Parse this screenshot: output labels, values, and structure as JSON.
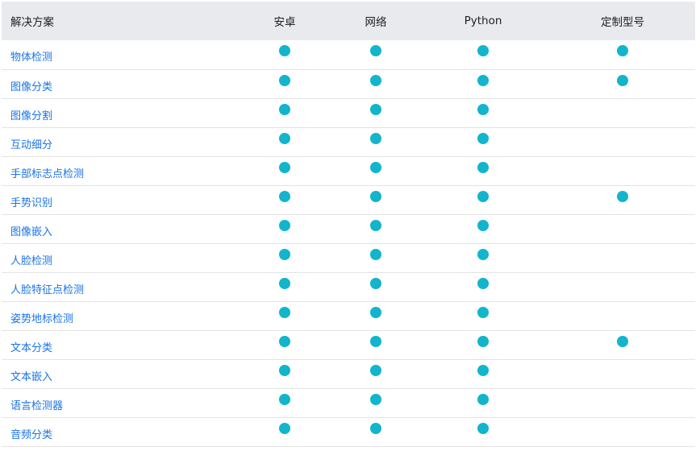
{
  "table": {
    "headers": [
      "解决方案",
      "安卓",
      "网络",
      "Python",
      "定制型号"
    ],
    "rows": [
      {
        "name": "物体检测",
        "support": [
          true,
          true,
          true,
          true
        ]
      },
      {
        "name": "图像分类",
        "support": [
          true,
          true,
          true,
          true
        ]
      },
      {
        "name": "图像分割",
        "support": [
          true,
          true,
          true,
          false
        ]
      },
      {
        "name": "互动细分",
        "support": [
          true,
          true,
          true,
          false
        ]
      },
      {
        "name": "手部标志点检测",
        "support": [
          true,
          true,
          true,
          false
        ]
      },
      {
        "name": "手势识别",
        "support": [
          true,
          true,
          true,
          true
        ]
      },
      {
        "name": "图像嵌入",
        "support": [
          true,
          true,
          true,
          false
        ]
      },
      {
        "name": "人脸检测",
        "support": [
          true,
          true,
          true,
          false
        ]
      },
      {
        "name": "人脸特征点检测",
        "support": [
          true,
          true,
          true,
          false
        ]
      },
      {
        "name": "姿势地标检测",
        "support": [
          true,
          true,
          true,
          false
        ]
      },
      {
        "name": "文本分类",
        "support": [
          true,
          true,
          true,
          true
        ]
      },
      {
        "name": "文本嵌入",
        "support": [
          true,
          true,
          true,
          false
        ]
      },
      {
        "name": "语言检测器",
        "support": [
          true,
          true,
          true,
          false
        ]
      },
      {
        "name": "音频分类",
        "support": [
          true,
          true,
          true,
          false
        ]
      }
    ]
  },
  "colors": {
    "header_bg": "#e8eaed",
    "link": "#1a73e8",
    "dot": "#12b5cb",
    "divider": "#e3e3e3"
  },
  "icons": {
    "supported": "supported-dot-icon"
  }
}
